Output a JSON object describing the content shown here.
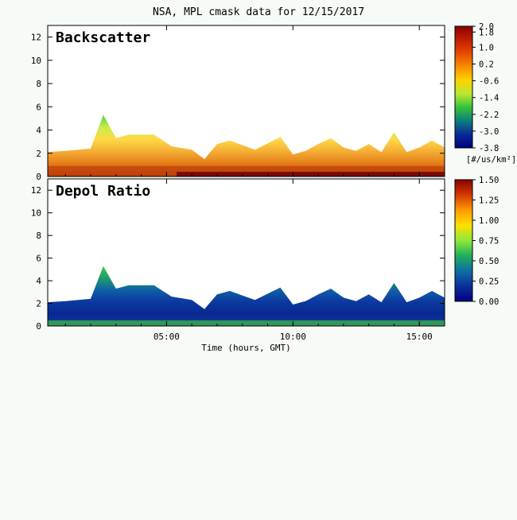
{
  "title": "NSA, MPL cmask data for 12/15/2017",
  "xlabel": "Time (hours, GMT)",
  "xticks": [
    "05:00",
    "10:00",
    "15:00"
  ],
  "chart_data": [
    {
      "type": "heatmap",
      "panel_label": "Backscatter",
      "x_range": [
        0.3,
        16.0
      ],
      "y_range": [
        0,
        13
      ],
      "yticks": [
        0,
        2,
        4,
        6,
        8,
        10,
        12
      ],
      "xtick_values": [
        5,
        10,
        15
      ],
      "colorbar": {
        "range": [
          -3.8,
          2.0
        ],
        "ticks": [
          "2.0",
          "1.8",
          "1.0",
          "0.2",
          "-0.6",
          "-1.4",
          "-2.2",
          "-3.0",
          "-3.8"
        ],
        "unit": "[#/us/km²]"
      },
      "cloud_top_km": [
        [
          0.3,
          2.1
        ],
        [
          1.0,
          2.2
        ],
        [
          2.0,
          2.4
        ],
        [
          2.5,
          5.3
        ],
        [
          3.0,
          3.3
        ],
        [
          3.5,
          3.6
        ],
        [
          4.5,
          3.6
        ],
        [
          5.2,
          2.6
        ],
        [
          6.0,
          2.3
        ],
        [
          6.5,
          1.5
        ],
        [
          7.0,
          2.8
        ],
        [
          7.5,
          3.1
        ],
        [
          8.0,
          2.7
        ],
        [
          8.5,
          2.3
        ],
        [
          9.5,
          3.4
        ],
        [
          10.0,
          1.9
        ],
        [
          10.5,
          2.2
        ],
        [
          11.0,
          2.8
        ],
        [
          11.5,
          3.3
        ],
        [
          12.0,
          2.5
        ],
        [
          12.5,
          2.2
        ],
        [
          13.0,
          2.8
        ],
        [
          13.5,
          2.1
        ],
        [
          14.0,
          3.8
        ],
        [
          14.5,
          2.1
        ],
        [
          15.0,
          2.5
        ],
        [
          15.5,
          3.1
        ],
        [
          16.0,
          2.5
        ]
      ]
    },
    {
      "type": "heatmap",
      "panel_label": "Depol Ratio",
      "x_range": [
        0.3,
        16.0
      ],
      "y_range": [
        0,
        13
      ],
      "yticks": [
        0,
        2,
        4,
        6,
        8,
        10,
        12
      ],
      "xtick_values": [
        5,
        10,
        15
      ],
      "colorbar": {
        "range": [
          0.0,
          1.5
        ],
        "ticks": [
          "1.50",
          "1.25",
          "1.00",
          "0.75",
          "0.50",
          "0.25",
          "0.00"
        ],
        "unit": ""
      },
      "cloud_top_km": [
        [
          0.3,
          2.1
        ],
        [
          1.0,
          2.2
        ],
        [
          2.0,
          2.4
        ],
        [
          2.5,
          5.3
        ],
        [
          3.0,
          3.3
        ],
        [
          3.5,
          3.6
        ],
        [
          4.5,
          3.6
        ],
        [
          5.2,
          2.6
        ],
        [
          6.0,
          2.3
        ],
        [
          6.5,
          1.5
        ],
        [
          7.0,
          2.8
        ],
        [
          7.5,
          3.1
        ],
        [
          8.0,
          2.7
        ],
        [
          8.5,
          2.3
        ],
        [
          9.5,
          3.4
        ],
        [
          10.0,
          1.9
        ],
        [
          10.5,
          2.2
        ],
        [
          11.0,
          2.8
        ],
        [
          11.5,
          3.3
        ],
        [
          12.0,
          2.5
        ],
        [
          12.5,
          2.2
        ],
        [
          13.0,
          2.8
        ],
        [
          13.5,
          2.1
        ],
        [
          14.0,
          3.8
        ],
        [
          14.5,
          2.1
        ],
        [
          15.0,
          2.5
        ],
        [
          15.5,
          3.1
        ],
        [
          16.0,
          2.5
        ]
      ]
    }
  ]
}
